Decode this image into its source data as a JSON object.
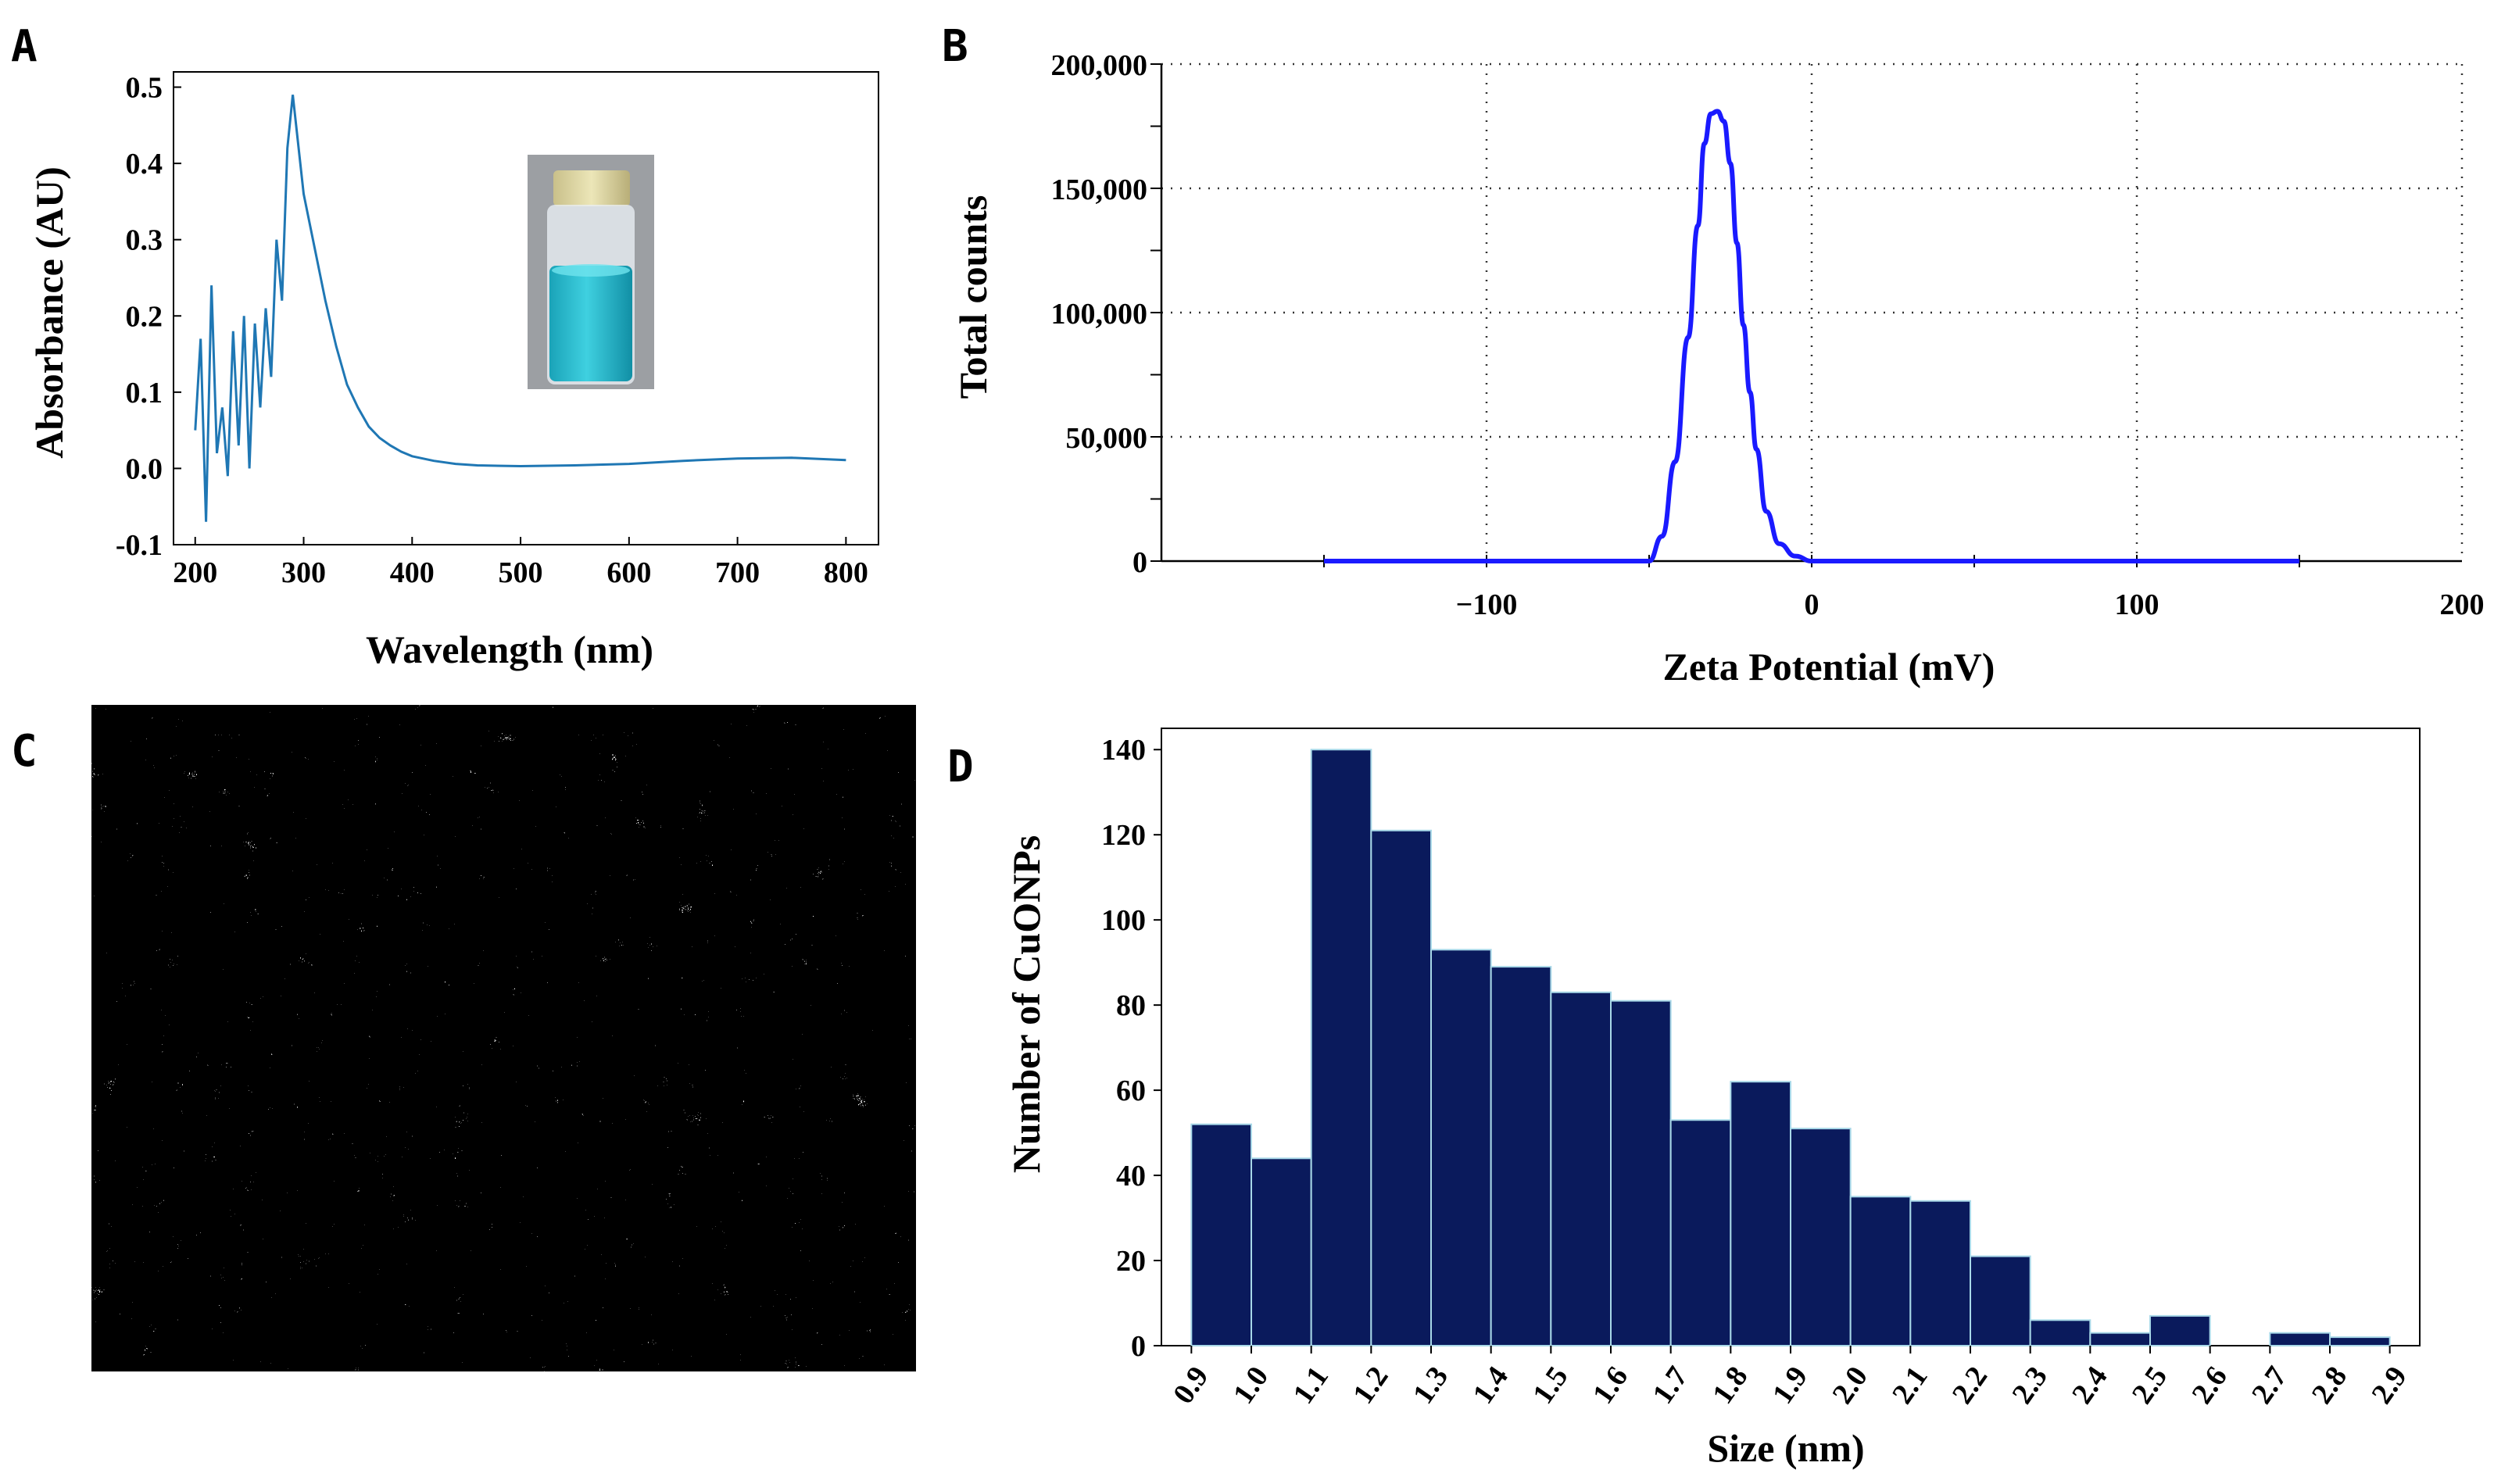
{
  "panels": {
    "a": "A",
    "b": "B",
    "c": "C",
    "d": "D"
  },
  "colors": {
    "uv_line": "#1f77b4",
    "zeta_line": "#1a1aff",
    "bar_fill": "#0a1a5c",
    "bar_edge": "#a8d8e8"
  },
  "chart_data": [
    {
      "id": "A",
      "type": "line",
      "xlabel": "Wavelength (nm)",
      "ylabel": "Absorbance (AU)",
      "xlim": [
        180,
        830
      ],
      "ylim": [
        -0.1,
        0.52
      ],
      "xticks": [
        200,
        300,
        400,
        500,
        600,
        700,
        800
      ],
      "yticks": [
        -0.1,
        0.0,
        0.1,
        0.2,
        0.3,
        0.4,
        0.5
      ],
      "ytick_labels": [
        "-0.1",
        "0.0",
        "0.1",
        "0.2",
        "0.3",
        "0.4",
        "0.5"
      ],
      "x": [
        200,
        205,
        210,
        215,
        220,
        225,
        230,
        235,
        240,
        245,
        250,
        255,
        260,
        265,
        270,
        275,
        280,
        285,
        290,
        300,
        310,
        320,
        330,
        340,
        350,
        360,
        370,
        380,
        390,
        400,
        420,
        440,
        460,
        500,
        550,
        600,
        650,
        700,
        750,
        800
      ],
      "y": [
        0.05,
        0.17,
        -0.07,
        0.24,
        0.02,
        0.08,
        -0.01,
        0.18,
        0.03,
        0.2,
        0.0,
        0.19,
        0.08,
        0.21,
        0.12,
        0.3,
        0.22,
        0.42,
        0.49,
        0.36,
        0.29,
        0.22,
        0.16,
        0.11,
        0.08,
        0.055,
        0.04,
        0.03,
        0.022,
        0.016,
        0.01,
        0.006,
        0.004,
        0.003,
        0.004,
        0.006,
        0.01,
        0.013,
        0.014,
        0.011
      ],
      "inset": "vial of blue solution"
    },
    {
      "id": "B",
      "type": "line",
      "xlabel": "Zeta Potential (mV)",
      "ylabel": "Total counts",
      "xlim": [
        -200,
        200
      ],
      "ylim": [
        0,
        200000
      ],
      "xticks": [
        -100,
        0,
        100,
        200
      ],
      "xtick_labels": [
        "−100",
        "0",
        "100",
        "200"
      ],
      "yticks": [
        0,
        50000,
        100000,
        150000,
        200000
      ],
      "ytick_labels": [
        "0",
        "50,000",
        "100,000",
        "150,000",
        "200,000"
      ],
      "x": [
        -150,
        -50,
        -46,
        -42,
        -38,
        -35,
        -33,
        -31,
        -29,
        -27,
        -25,
        -23,
        -21,
        -19,
        -17,
        -14,
        -10,
        -5,
        0,
        150
      ],
      "y": [
        0,
        0,
        10000,
        40000,
        90000,
        135000,
        168000,
        180000,
        181000,
        177000,
        160000,
        128000,
        95000,
        68000,
        45000,
        20000,
        7000,
        2000,
        0,
        0
      ],
      "grid": true
    },
    {
      "id": "D",
      "type": "bar",
      "xlabel": "Size (nm)",
      "ylabel": "Number of CuONPs",
      "xlim": [
        0.85,
        2.95
      ],
      "ylim": [
        0,
        145
      ],
      "xticks": [
        "0.9",
        "1.0",
        "1.1",
        "1.2",
        "1.3",
        "1.4",
        "1.5",
        "1.6",
        "1.7",
        "1.8",
        "1.9",
        "2.0",
        "2.1",
        "2.2",
        "2.3",
        "2.4",
        "2.5",
        "2.6",
        "2.7",
        "2.8",
        "2.9"
      ],
      "yticks": [
        0,
        20,
        40,
        60,
        80,
        100,
        120,
        140
      ],
      "bin_edges": [
        0.9,
        1.0,
        1.1,
        1.2,
        1.3,
        1.4,
        1.5,
        1.6,
        1.7,
        1.8,
        1.9,
        2.0,
        2.1,
        2.2,
        2.3,
        2.4,
        2.5,
        2.6,
        2.7,
        2.8,
        2.9
      ],
      "values": [
        52,
        44,
        140,
        121,
        93,
        89,
        83,
        81,
        53,
        62,
        51,
        35,
        34,
        21,
        6,
        3,
        7,
        0,
        3,
        2
      ]
    }
  ]
}
